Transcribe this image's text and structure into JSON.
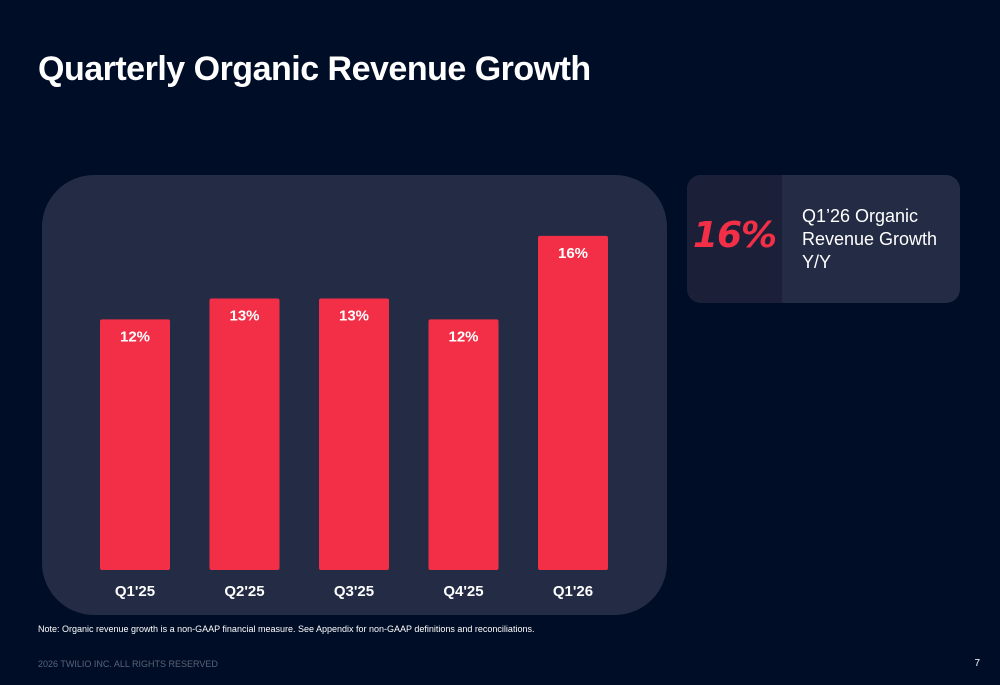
{
  "title": "Quarterly Organic Revenue Growth",
  "colors": {
    "bar": "#f22f46",
    "background": "#000d26",
    "panel": "#242c45"
  },
  "chart_data": {
    "type": "bar",
    "categories": [
      "Q1'25",
      "Q2'25",
      "Q3'25",
      "Q4'25",
      "Q1'26"
    ],
    "values": [
      12,
      13,
      13,
      12,
      16
    ],
    "value_labels": [
      "12%",
      "13%",
      "13%",
      "12%",
      "16%"
    ],
    "title": "",
    "xlabel": "",
    "ylabel": "",
    "ylim": [
      0,
      17
    ],
    "grid": false
  },
  "kpi": {
    "value": "16%",
    "label": "Q1’26 Organic Revenue Growth Y/Y"
  },
  "note": "Note: Organic revenue growth is a non-GAAP financial measure. See Appendix for non-GAAP definitions and reconciliations.",
  "footer": "2026 TWILIO INC. ALL RIGHTS RESERVED",
  "page_number": "7"
}
